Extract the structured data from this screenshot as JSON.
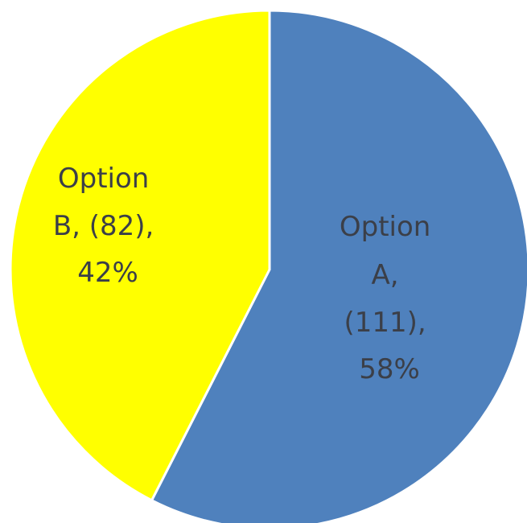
{
  "chart_data": {
    "type": "pie",
    "slices": [
      {
        "name": "Option A",
        "value": 111,
        "percent": 58,
        "color": "#4f81bd",
        "label_lines": [
          "Option",
          "A,",
          "(111),",
          "58%"
        ]
      },
      {
        "name": "Option B",
        "value": 82,
        "percent": 42,
        "color": "#ffff00",
        "label_lines": [
          "Option",
          "B, (82),",
          "42%"
        ]
      }
    ],
    "start": "12 o'clock",
    "direction": "clockwise",
    "data_labels": "inside"
  }
}
